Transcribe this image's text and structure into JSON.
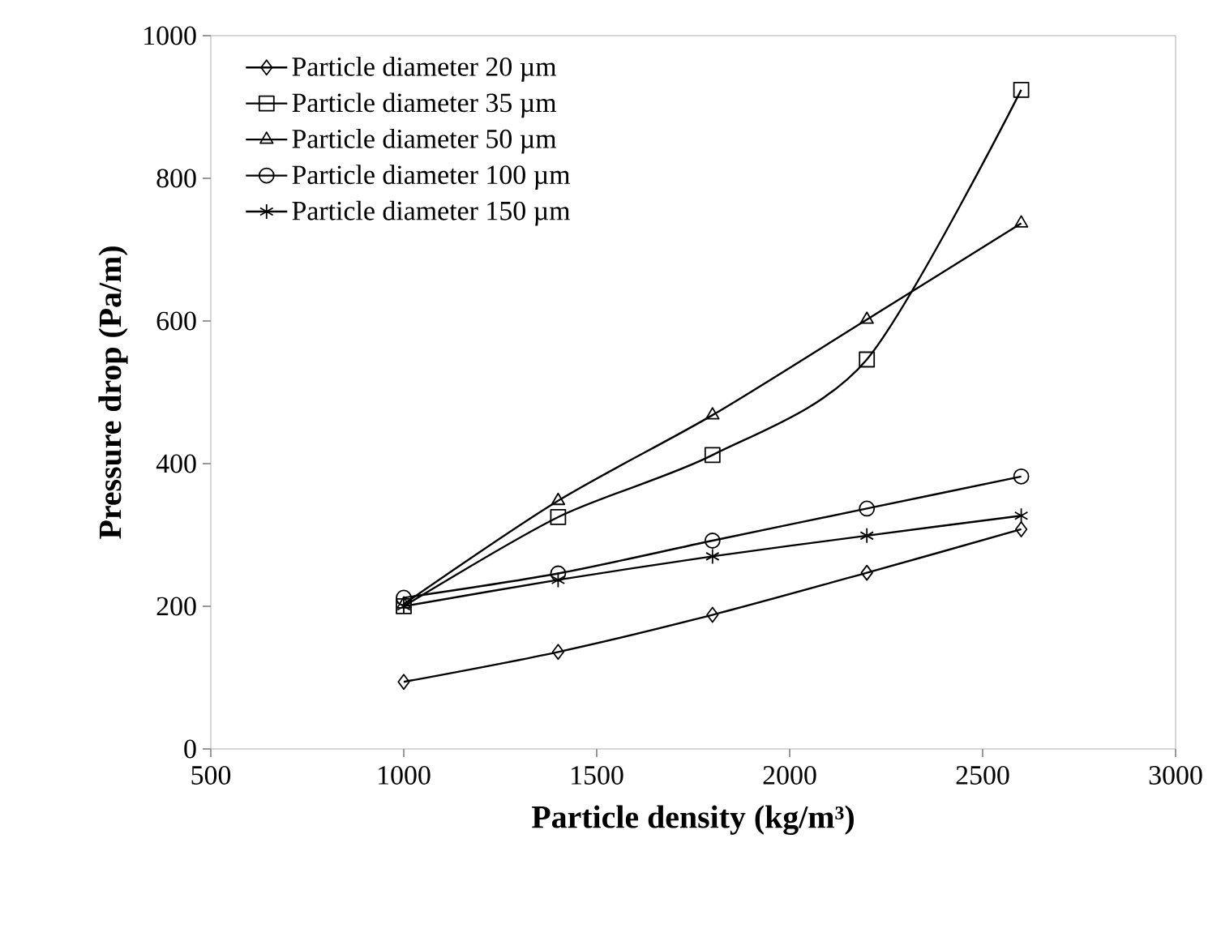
{
  "chart_data": {
    "type": "line",
    "xlabel": "Particle density (kg/m³)",
    "ylabel": "Pressure drop (Pa/m)",
    "x": [
      1000,
      1400,
      1800,
      2200,
      2600
    ],
    "series": [
      {
        "name": "Particle diameter 20 µm",
        "color": "#000000",
        "marker": "diamond",
        "values": [
          94,
          136,
          188,
          247,
          308
        ]
      },
      {
        "name": "Particle diameter 35 µm",
        "color": "#000000",
        "marker": "square",
        "values": [
          200,
          325,
          412,
          546,
          924
        ]
      },
      {
        "name": "Particle diameter 50 µm",
        "color": "#000000",
        "marker": "triangle",
        "values": [
          203,
          348,
          468,
          602,
          737
        ]
      },
      {
        "name": "Particle diameter 100 µm",
        "color": "#000000",
        "marker": "circle",
        "values": [
          212,
          246,
          292,
          337,
          382
        ]
      },
      {
        "name": "Particle diameter 150 µm",
        "color": "#000000",
        "marker": "cross",
        "values": [
          200,
          237,
          270,
          299,
          327
        ]
      }
    ],
    "xlim": [
      500,
      3000
    ],
    "xticks": [
      500,
      1000,
      1500,
      2000,
      2500,
      3000
    ],
    "ylim": [
      0,
      1000
    ],
    "yticks": [
      0,
      200,
      400,
      600,
      800,
      1000
    ],
    "grid": false,
    "legend": "top left",
    "line_style": "solid"
  }
}
